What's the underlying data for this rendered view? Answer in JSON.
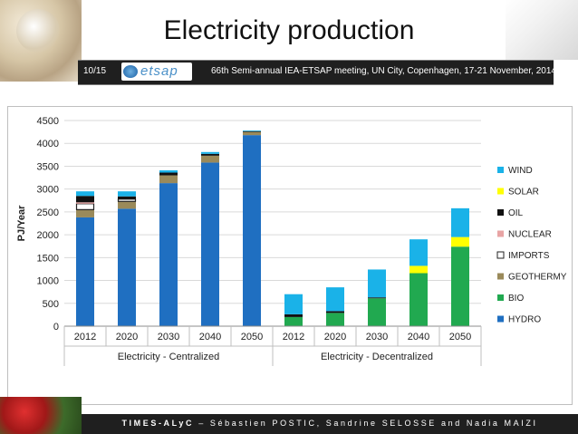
{
  "slide": {
    "title": "Electricity production",
    "number": "10/15",
    "logo_text": "etsap",
    "meeting": "66th Semi-annual IEA-ETSAP meeting, UN City, Copenhagen, 17-21 November, 2014",
    "footer_brand": "TIMES-ALyC",
    "footer_authors": " – Sébastien POSTIC, Sandrine SELOSSE and Nadia MAIZI"
  },
  "chart_data": {
    "type": "bar",
    "stacked": true,
    "title": "",
    "xlabel": "",
    "ylabel": "PJ/Year",
    "ylim": [
      0,
      4500
    ],
    "yticks": [
      0,
      500,
      1000,
      1500,
      2000,
      2500,
      3000,
      3500,
      4000,
      4500
    ],
    "grid": true,
    "legend_position": "right",
    "categories": [
      "2012",
      "2020",
      "2030",
      "2040",
      "2050",
      "2012",
      "2020",
      "2030",
      "2040",
      "2050"
    ],
    "groups": [
      {
        "name": "Electricity - Centralized",
        "start": 0,
        "end": 4
      },
      {
        "name": "Electricity - Decentralized",
        "start": 5,
        "end": 9
      }
    ],
    "series": [
      {
        "name": "HYDRO",
        "color": "#1f6fc1",
        "values": [
          2380,
          2570,
          3130,
          3580,
          4180,
          0,
          0,
          0,
          0,
          0
        ]
      },
      {
        "name": "BIO",
        "color": "#21a950",
        "values": [
          0,
          0,
          0,
          0,
          0,
          200,
          290,
          610,
          1160,
          1740
        ]
      },
      {
        "name": "GEOTHERMY",
        "color": "#9a8a5a",
        "values": [
          170,
          160,
          170,
          150,
          70,
          0,
          0,
          0,
          0,
          0
        ]
      },
      {
        "name": "IMPORTS",
        "color": "#ffffff",
        "values": [
          130,
          50,
          0,
          0,
          0,
          0,
          0,
          0,
          0,
          0
        ]
      },
      {
        "name": "NUCLEAR",
        "color": "#e8a4a4",
        "values": [
          30,
          0,
          0,
          0,
          0,
          0,
          0,
          0,
          0,
          0
        ]
      },
      {
        "name": "OIL",
        "color": "#111111",
        "values": [
          140,
          60,
          60,
          40,
          20,
          60,
          40,
          20,
          0,
          0
        ]
      },
      {
        "name": "SOLAR",
        "color": "#ffff00",
        "values": [
          0,
          0,
          0,
          0,
          0,
          0,
          0,
          0,
          160,
          210
        ]
      },
      {
        "name": "WIND",
        "color": "#1ab2e8",
        "values": [
          100,
          110,
          50,
          40,
          10,
          440,
          520,
          610,
          580,
          630
        ]
      }
    ],
    "legend_order": [
      "WIND",
      "SOLAR",
      "OIL",
      "NUCLEAR",
      "IMPORTS",
      "GEOTHERMY",
      "BIO",
      "HYDRO"
    ]
  }
}
